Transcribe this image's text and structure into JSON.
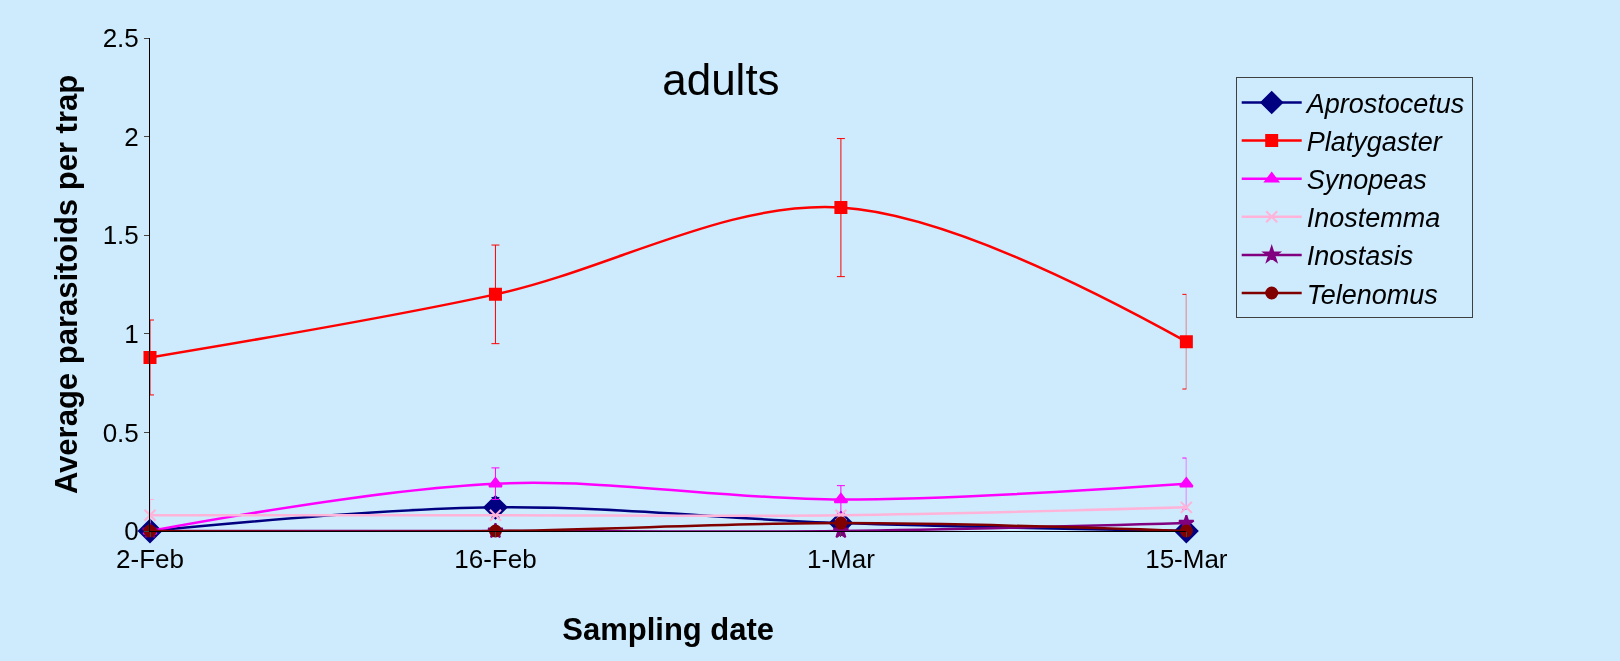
{
  "chart_data": {
    "type": "line",
    "title": "adults",
    "xlabel": "Sampling date",
    "ylabel": "Average parasitoids per trap",
    "categories": [
      "2-Feb",
      "16-Feb",
      "1-Mar",
      "15-Mar"
    ],
    "ylim": [
      0,
      2.5
    ],
    "yticks": [
      0,
      0.5,
      1,
      1.5,
      2,
      2.5
    ],
    "grid": false,
    "legend": "right",
    "series": [
      {
        "name": "Aprostocetus",
        "color": "#000080",
        "marker": "diamond",
        "values": [
          0,
          0.12,
          0.04,
          0
        ],
        "errors": [
          null,
          0.05,
          null,
          null
        ]
      },
      {
        "name": "Platygaster",
        "color": "#ff0000",
        "marker": "square",
        "values": [
          0.88,
          1.2,
          1.64,
          0.96
        ],
        "errors": [
          0.19,
          0.25,
          0.35,
          0.24
        ]
      },
      {
        "name": "Synopeas",
        "color": "#ff00ff",
        "marker": "triangle",
        "values": [
          0,
          0.24,
          0.16,
          0.24
        ],
        "errors": [
          null,
          0.08,
          0.07,
          0.13
        ]
      },
      {
        "name": "Inostemma",
        "color": "#ffb3d9",
        "marker": "cross",
        "values": [
          0.08,
          0.08,
          0.08,
          0.12
        ],
        "errors": [
          0.08,
          null,
          null,
          null
        ]
      },
      {
        "name": "Inostasis",
        "color": "#800080",
        "marker": "star",
        "values": [
          0,
          0,
          0,
          0.04
        ]
      },
      {
        "name": "Telenomus",
        "color": "#800000",
        "marker": "circle",
        "values": [
          0,
          0,
          0.04,
          0
        ]
      }
    ]
  }
}
